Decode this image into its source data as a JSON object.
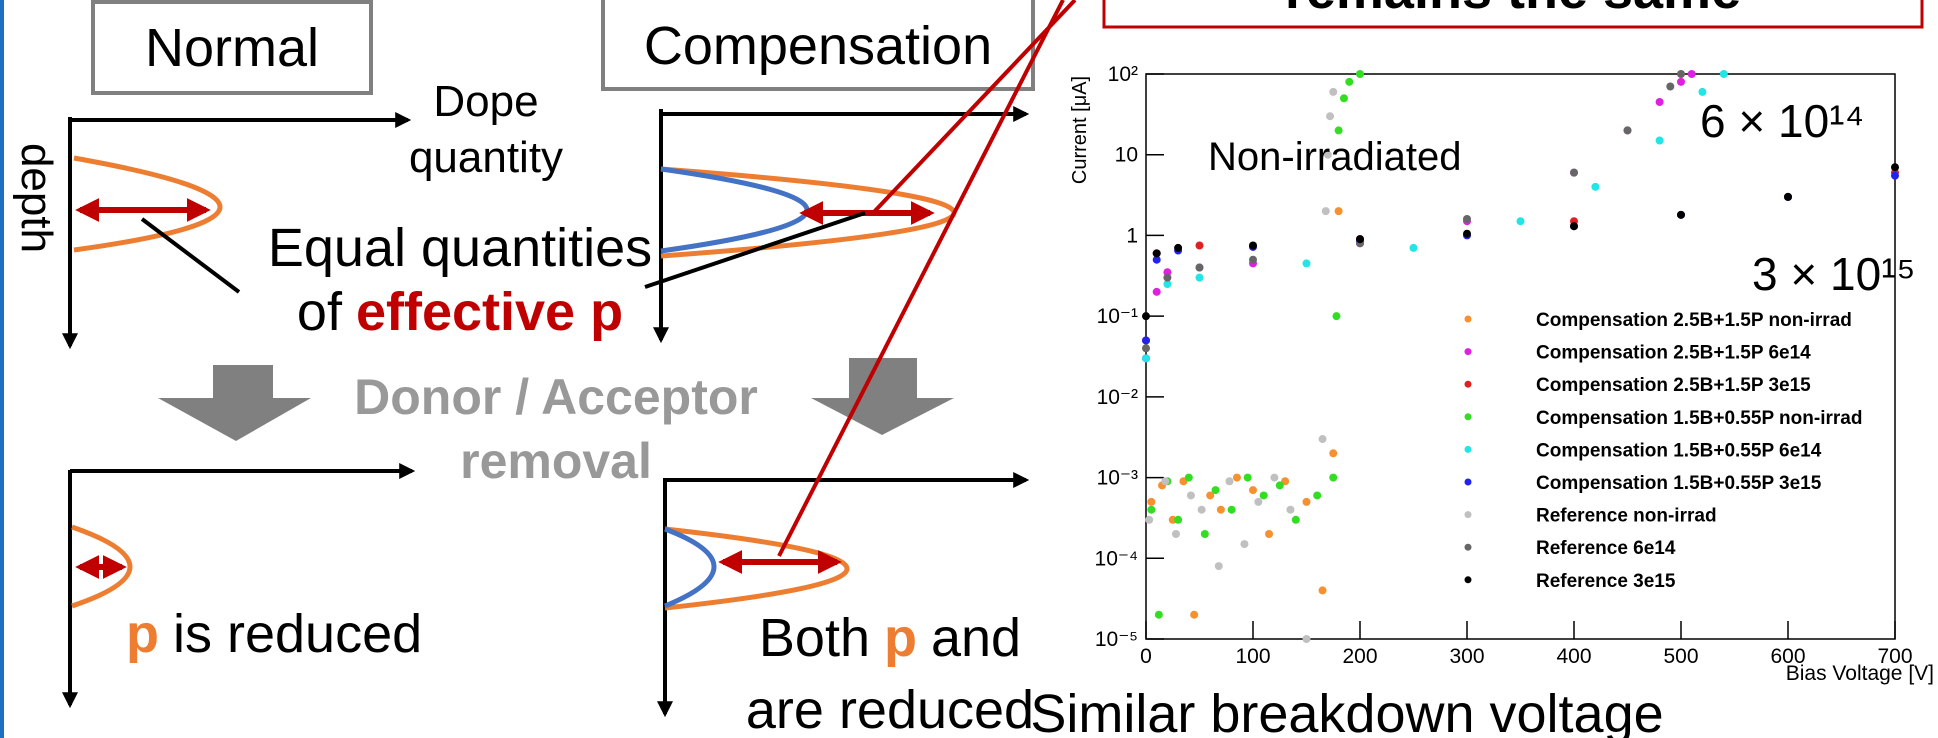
{
  "callout": "remains the same",
  "diagram": {
    "normal_label": "Normal",
    "compensation_label": "Compensation",
    "axis_x_label": [
      "Dope",
      "quantity"
    ],
    "axis_y_label": "depth",
    "equal_note": {
      "line1": "Equal quantities",
      "line2_prefix": "of",
      "line2_highlight": "effective p"
    },
    "removal": [
      "Donor / Acceptor",
      "removal"
    ],
    "normal_result": {
      "highlight": "p",
      "text": "is reduced"
    },
    "compensation_result": {
      "prefix": "Both",
      "highlight": "p",
      "suffix": "and",
      "line2": "are reduced"
    }
  },
  "chart_data": {
    "type": "scatter",
    "y_label": "Current [μA]",
    "x_label": "Bias Voltage [V]",
    "log_y": true,
    "grid": false,
    "legend_position": "lower right",
    "xlim": [
      0,
      700
    ],
    "xticks": [
      0,
      100,
      200,
      300,
      400,
      500,
      600,
      700
    ],
    "ylim": [
      1e-05,
      100
    ],
    "yticks": [
      {
        "value": 100,
        "label": "10²"
      },
      10,
      1,
      {
        "value": 0.1,
        "label": "10⁻¹"
      },
      {
        "value": 0.01,
        "label": "10⁻²"
      },
      {
        "value": 0.001,
        "label": "10⁻³"
      },
      {
        "value": 0.0001,
        "label": "10⁻⁴"
      },
      {
        "value": 1e-05,
        "label": "10⁻⁵"
      }
    ],
    "annotations": [
      "Non-irradiated",
      "6 × 10¹⁴",
      "3 × 10¹⁵"
    ],
    "caption": "Similar breakdown voltage",
    "series": [
      {
        "name": "Compensation 2.5B+1.5P non-irrad",
        "color": "#f7902f",
        "x": [
          5,
          15,
          25,
          35,
          45,
          60,
          70,
          85,
          100,
          115,
          130,
          150,
          165,
          175,
          180
        ],
        "values": [
          0.0005,
          0.0008,
          0.0003,
          0.0009,
          2e-05,
          0.0006,
          0.0004,
          0.001,
          0.0007,
          0.0002,
          0.0009,
          0.0005,
          4e-05,
          0.002,
          2
        ]
      },
      {
        "name": "Compensation 2.5B+1.5P 6e14",
        "color": "#e020e0",
        "x": [
          0,
          10,
          20,
          50,
          100,
          200,
          300,
          400,
          450,
          480,
          500,
          510
        ],
        "values": [
          0.03,
          0.2,
          0.35,
          0.4,
          0.45,
          0.8,
          1.5,
          6,
          20,
          45,
          80,
          100
        ]
      },
      {
        "name": "Compensation 2.5B+1.5P 3e15",
        "color": "#e02020",
        "x": [
          0,
          10,
          50,
          200,
          400,
          600,
          700
        ],
        "values": [
          0.05,
          0.6,
          0.75,
          0.9,
          1.5,
          3,
          6
        ]
      },
      {
        "name": "Compensation 1.5B+0.55P non-irrad",
        "color": "#33dd22",
        "x": [
          5,
          12,
          20,
          30,
          40,
          55,
          65,
          80,
          95,
          110,
          125,
          140,
          160,
          175,
          178,
          180,
          185,
          190,
          200
        ],
        "values": [
          0.0004,
          2e-05,
          0.0009,
          0.0003,
          0.001,
          0.0002,
          0.0007,
          0.0004,
          0.001,
          0.0006,
          0.0008,
          0.0003,
          0.0006,
          0.001,
          0.1,
          20,
          50,
          80,
          100
        ]
      },
      {
        "name": "Compensation 1.5B+0.55P 6e14",
        "color": "#22e5e5",
        "x": [
          0,
          20,
          50,
          150,
          250,
          350,
          420,
          480,
          520,
          540
        ],
        "values": [
          0.03,
          0.25,
          0.3,
          0.45,
          0.7,
          1.5,
          4,
          15,
          60,
          100
        ]
      },
      {
        "name": "Compensation 1.5B+0.55P 3e15",
        "color": "#2222ee",
        "x": [
          0,
          10,
          30,
          100,
          200,
          300,
          400,
          500,
          600,
          700
        ],
        "values": [
          0.05,
          0.5,
          0.65,
          0.72,
          0.85,
          1,
          1.3,
          1.8,
          3,
          5.5
        ]
      },
      {
        "name": "Reference non-irrad",
        "color": "#c0c0c0",
        "x": [
          3,
          18,
          28,
          42,
          52,
          68,
          78,
          92,
          105,
          120,
          135,
          150,
          165,
          168,
          170,
          172,
          175
        ],
        "values": [
          0.0003,
          0.0009,
          0.0002,
          0.0006,
          0.0004,
          8e-05,
          0.0009,
          0.00015,
          0.0005,
          0.001,
          0.0004,
          1e-05,
          0.003,
          2,
          10,
          30,
          60
        ]
      },
      {
        "name": "Reference 6e14",
        "color": "#666666",
        "x": [
          0,
          20,
          50,
          100,
          200,
          300,
          400,
          450,
          490,
          500
        ],
        "values": [
          0.04,
          0.3,
          0.4,
          0.5,
          0.8,
          1.6,
          6,
          20,
          70,
          100
        ]
      },
      {
        "name": "Reference 3e15",
        "color": "#000000",
        "x": [
          0,
          10,
          30,
          100,
          200,
          300,
          400,
          500,
          600,
          700
        ],
        "values": [
          0.1,
          0.6,
          0.7,
          0.75,
          0.9,
          1.05,
          1.3,
          1.8,
          3,
          7
        ]
      }
    ]
  }
}
